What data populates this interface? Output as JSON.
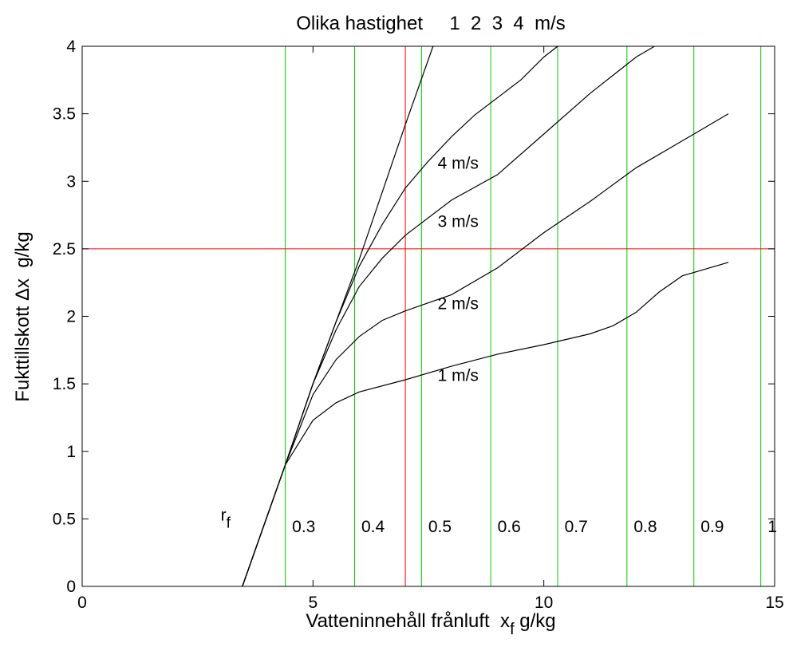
{
  "chart_data": {
    "type": "line",
    "title": "Olika hastighet     1  2  3  4  m/s",
    "xlabel": {
      "main": "Vatteninnehåll frånluft  x",
      "sub": "f",
      "unit": " g/kg"
    },
    "ylabel": "Fukttillskott Δx  g/kg",
    "xlim": [
      0,
      15
    ],
    "ylim": [
      0,
      4
    ],
    "xticks": [
      0,
      5,
      10,
      15
    ],
    "yticks": [
      0,
      0.5,
      1,
      1.5,
      2,
      2.5,
      3,
      3.5,
      4
    ],
    "xtick_labels": [
      "0",
      "5",
      "10",
      "15"
    ],
    "ytick_labels": [
      "0",
      "0.5",
      "1",
      "1.5",
      "2",
      "2.5",
      "3",
      "3.5",
      "4"
    ],
    "grid": false,
    "series": [
      {
        "name": "1  m/s",
        "color": "#000000",
        "x": [
          3.47,
          4.4,
          5.0,
          5.5,
          6.0,
          7.0,
          8.0,
          9.0,
          10.0,
          11.0,
          11.5,
          12.0,
          12.5,
          13.0,
          13.5,
          14.0
        ],
        "y": [
          0.0,
          0.9,
          1.23,
          1.36,
          1.44,
          1.53,
          1.63,
          1.72,
          1.79,
          1.87,
          1.93,
          2.03,
          2.18,
          2.3,
          2.35,
          2.4
        ]
      },
      {
        "name": "2  m/s",
        "color": "#000000",
        "x": [
          3.47,
          4.4,
          5.0,
          5.5,
          6.0,
          6.5,
          7.0,
          8.0,
          9.0,
          10.0,
          11.0,
          12.0,
          13.0,
          14.0
        ],
        "y": [
          0.0,
          0.9,
          1.42,
          1.68,
          1.85,
          1.97,
          2.04,
          2.16,
          2.36,
          2.62,
          2.85,
          3.1,
          3.3,
          3.5
        ]
      },
      {
        "name": "3  m/s",
        "color": "#000000",
        "x": [
          3.47,
          4.4,
          5.0,
          5.5,
          6.0,
          6.5,
          7.0,
          8.0,
          9.0,
          10.0,
          11.0,
          12.0,
          12.4
        ],
        "y": [
          0.0,
          0.9,
          1.5,
          1.9,
          2.22,
          2.43,
          2.6,
          2.86,
          3.05,
          3.35,
          3.65,
          3.92,
          4.0
        ]
      },
      {
        "name": "4  m/s",
        "color": "#000000",
        "x": [
          3.47,
          4.4,
          5.0,
          5.5,
          6.0,
          6.5,
          7.0,
          7.5,
          8.0,
          8.5,
          9.0,
          9.5,
          10.0,
          10.3
        ],
        "y": [
          0.0,
          0.9,
          1.5,
          1.96,
          2.37,
          2.68,
          2.95,
          3.15,
          3.33,
          3.49,
          3.62,
          3.75,
          3.92,
          4.0
        ]
      },
      {
        "name": "",
        "color": "#000000",
        "x": [
          3.47,
          4.4,
          5.0,
          6.0,
          7.0,
          7.6
        ],
        "y": [
          0.0,
          0.9,
          1.5,
          2.42,
          3.42,
          4.0
        ]
      }
    ],
    "reference_lines": {
      "horizontal": [
        {
          "y": 2.5,
          "color": "#ff0000"
        }
      ],
      "vertical": [
        {
          "x": 7.0,
          "color": "#ff0000"
        },
        {
          "x": 4.4,
          "color": "#00cc00"
        },
        {
          "x": 5.9,
          "color": "#00cc00"
        },
        {
          "x": 7.35,
          "color": "#00cc00"
        },
        {
          "x": 8.85,
          "color": "#00cc00"
        },
        {
          "x": 10.3,
          "color": "#00cc00"
        },
        {
          "x": 11.8,
          "color": "#00cc00"
        },
        {
          "x": 13.25,
          "color": "#00cc00"
        },
        {
          "x": 14.7,
          "color": "#00cc00"
        }
      ]
    },
    "speed_labels": [
      {
        "text": "4  m/s",
        "x": 7.7,
        "y": 3.14
      },
      {
        "text": "3  m/s",
        "x": 7.7,
        "y": 2.71
      },
      {
        "text": "2  m/s",
        "x": 7.7,
        "y": 2.1
      },
      {
        "text": "1  m/s",
        "x": 7.7,
        "y": 1.57
      }
    ],
    "rf_label": {
      "text": "r",
      "sub": "f",
      "x": 3.0,
      "y": 0.5
    },
    "rf_values": [
      {
        "text": "0.3",
        "x": 4.8
      },
      {
        "text": "0.4",
        "x": 6.3
      },
      {
        "text": "0.5",
        "x": 7.75
      },
      {
        "text": "0.6",
        "x": 9.25
      },
      {
        "text": "0.7",
        "x": 10.7
      },
      {
        "text": "0.8",
        "x": 12.2
      },
      {
        "text": "0.9",
        "x": 13.65
      },
      {
        "text": "1",
        "x": 14.95
      }
    ],
    "rf_values_y": 0.45
  }
}
